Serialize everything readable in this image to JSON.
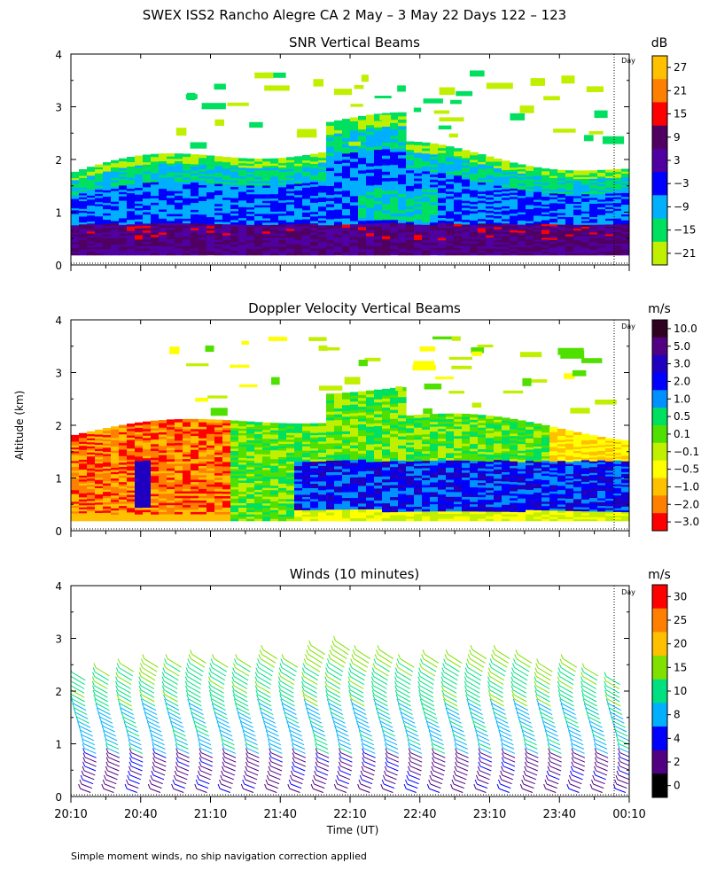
{
  "title": "SWEX ISS2 Rancho Alegre CA    2 May –   3 May 22 Days 122 – 123",
  "ylabel": "Altitude (km)",
  "xlabel": "Time (UT)",
  "footnote": "Simple moment winds, no ship navigation correction applied",
  "day_marker_label": "Day",
  "chart_data": [
    {
      "type": "heatmap",
      "title": "SNR Vertical Beams",
      "unit": "dB",
      "xlabel": "Time (UT)",
      "ylabel": "Altitude (km)",
      "x_ticks": [
        "20:10",
        "20:40",
        "21:10",
        "21:40",
        "22:10",
        "22:40",
        "23:10",
        "23:40",
        "00:10"
      ],
      "y_ticks": [
        "0",
        "1",
        "2",
        "3",
        "4"
      ],
      "ylim": [
        0,
        4
      ],
      "colorbar_ticks": [
        "27",
        "21",
        "15",
        "9",
        "3",
        "−3",
        "−9",
        "−15",
        "−21"
      ],
      "colors": [
        "#ffc000",
        "#ff8000",
        "#ff0000",
        "#500060",
        "#5000a0",
        "#0000ff",
        "#00b0ff",
        "#00e060",
        "#c0f000"
      ]
    },
    {
      "type": "heatmap",
      "title": "Doppler Velocity Vertical Beams",
      "unit": "m/s",
      "xlabel": "Time (UT)",
      "ylabel": "Altitude (km)",
      "x_ticks": [
        "20:10",
        "20:40",
        "21:10",
        "21:40",
        "22:10",
        "22:40",
        "23:10",
        "23:40",
        "00:10"
      ],
      "y_ticks": [
        "0",
        "1",
        "2",
        "3",
        "4"
      ],
      "ylim": [
        0,
        4
      ],
      "colorbar_ticks": [
        "10.0",
        "5.0",
        "3.0",
        "2.0",
        "1.0",
        "0.5",
        "0.1",
        "−0.1",
        "−0.5",
        "−1.0",
        "−2.0",
        "−3.0"
      ],
      "colors": [
        "#300020",
        "#500080",
        "#2000c0",
        "#0000ff",
        "#0090ff",
        "#00e060",
        "#50e000",
        "#c0f000",
        "#ffff00",
        "#ffc000",
        "#ff8000",
        "#ff0000"
      ]
    },
    {
      "type": "wind_barbs",
      "title": "Winds (10 minutes)",
      "unit": "m/s",
      "xlabel": "Time (UT)",
      "ylabel": "Altitude (km)",
      "x_ticks": [
        "20:10",
        "20:40",
        "21:10",
        "21:40",
        "22:10",
        "22:40",
        "23:10",
        "23:40",
        "00:10"
      ],
      "y_ticks": [
        "0",
        "1",
        "2",
        "3",
        "4"
      ],
      "ylim": [
        0,
        4
      ],
      "colorbar_ticks": [
        "30",
        "25",
        "20",
        "15",
        "10",
        "8",
        "4",
        "2",
        "0"
      ],
      "colors": [
        "#ff0000",
        "#ff8000",
        "#ffc000",
        "#80e000",
        "#00e080",
        "#00b0ff",
        "#0000ff",
        "#500080",
        "#000000"
      ],
      "profile_times_min_after_2010": [
        0,
        10,
        20,
        30,
        40,
        50,
        60,
        70,
        80,
        90,
        100,
        110,
        120,
        130,
        140,
        150,
        160,
        170,
        180,
        190,
        200,
        210,
        220,
        230
      ]
    }
  ]
}
